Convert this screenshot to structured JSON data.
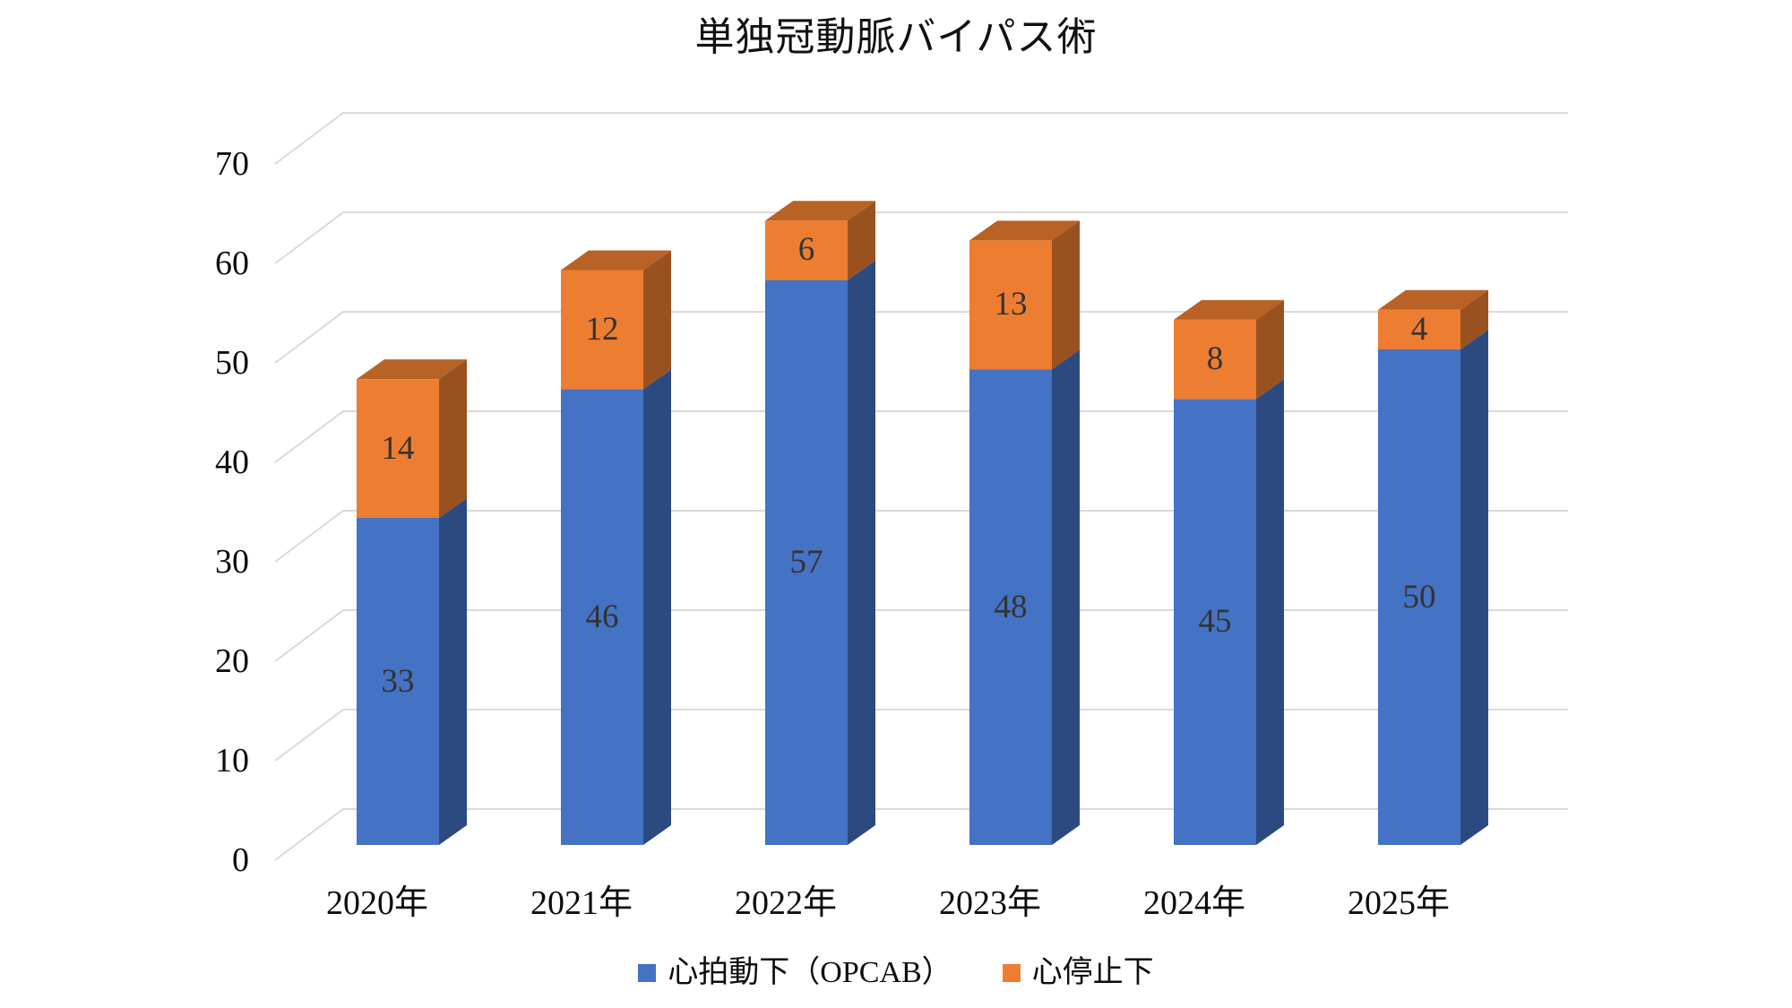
{
  "chart_data": {
    "type": "bar",
    "variant": "3d-stacked-column",
    "title": "単独冠動脈バイパス術",
    "categories": [
      "2020年",
      "2021年",
      "2022年",
      "2023年",
      "2024年",
      "2025年"
    ],
    "series": [
      {
        "name": "心拍動下（OPCAB）",
        "color": "#4472C4",
        "values": [
          33,
          46,
          57,
          48,
          45,
          50
        ]
      },
      {
        "name": "心停止下",
        "color": "#ED7D31",
        "values": [
          14,
          12,
          6,
          13,
          8,
          4
        ]
      }
    ],
    "totals": [
      47,
      58,
      63,
      61,
      53,
      54
    ],
    "ylabel": "",
    "xlabel": "",
    "ylim": [
      0,
      70
    ],
    "y_ticks": [
      0,
      10,
      20,
      30,
      40,
      50,
      60,
      70
    ],
    "grid": true,
    "gridline_color": "#D9D9D9",
    "axis_text_color": "#0d0d0d",
    "data_label_color": "#333333",
    "data_labels": true,
    "legend_position": "bottom"
  }
}
